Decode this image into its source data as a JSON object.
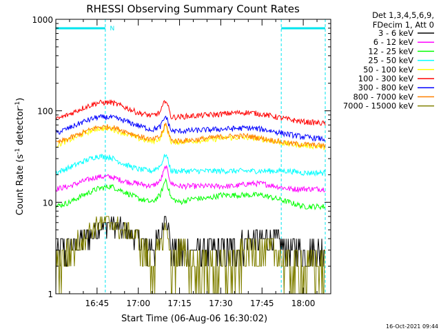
{
  "chart_data": {
    "type": "line",
    "title": "RHESSI Observing Summary Count Rates",
    "xlabel": "Start Time (06-Aug-06 16:30:02)",
    "ylabel_main": "Count Rate (s",
    "ylabel_sup1": "-1",
    "ylabel_mid": " detector",
    "ylabel_sup2": "-1",
    "ylabel_end": ")",
    "y_scale": "log",
    "ylim": [
      1,
      1000
    ],
    "xlim": [
      "16:30",
      "18:10"
    ],
    "x_ticks": [
      "16:45",
      "17:00",
      "17:15",
      "17:30",
      "17:45",
      "18:00"
    ],
    "y_ticks": [
      "1",
      "10",
      "100",
      "1000"
    ],
    "legend_header": [
      "Det 1,3,4,5,6,9,",
      "FDecim 1, Att 0"
    ],
    "timestamp": "16-Oct-2021 09:44",
    "night_marker_label": "N",
    "night_intervals": [
      [
        "16:30",
        "16:48"
      ],
      [
        "17:52",
        "18:08"
      ]
    ],
    "x_time": [
      "16:30",
      "16:35",
      "16:40",
      "16:45",
      "16:50",
      "16:55",
      "17:00",
      "17:05",
      "17:08",
      "17:10",
      "17:12",
      "17:15",
      "17:20",
      "17:25",
      "17:30",
      "17:35",
      "17:40",
      "17:45",
      "17:50",
      "17:55",
      "18:00",
      "18:05",
      "18:10"
    ],
    "series": [
      {
        "name": "3 - 6 keV",
        "color": "#000000",
        "values": [
          3,
          3,
          4,
          5,
          6,
          5,
          4,
          3,
          4,
          8,
          3,
          3,
          3,
          3,
          3,
          3,
          4,
          4,
          4,
          3,
          3,
          3,
          3
        ]
      },
      {
        "name": "6 - 12 keV",
        "color": "#ff00ff",
        "values": [
          14,
          15,
          17,
          19,
          19,
          17,
          16,
          15,
          17,
          25,
          16,
          15,
          15,
          15,
          15,
          15,
          16,
          16,
          15,
          14,
          14,
          14,
          14
        ]
      },
      {
        "name": "12 - 25 keV",
        "color": "#00ff00",
        "values": [
          9,
          10,
          12,
          14,
          15,
          13,
          11,
          10,
          12,
          18,
          11,
          10,
          11,
          11,
          12,
          12,
          12,
          12,
          11,
          10,
          9,
          9,
          9
        ]
      },
      {
        "name": "25 - 50 keV",
        "color": "#00ffff",
        "values": [
          21,
          24,
          28,
          32,
          31,
          26,
          23,
          22,
          25,
          34,
          22,
          22,
          22,
          22,
          22,
          22,
          22,
          22,
          22,
          22,
          21,
          21,
          21
        ]
      },
      {
        "name": "50 - 100 keV",
        "color": "#ffff00",
        "values": [
          42,
          48,
          56,
          64,
          64,
          57,
          50,
          46,
          50,
          70,
          45,
          46,
          47,
          48,
          50,
          51,
          51,
          49,
          46,
          43,
          42,
          41,
          40
        ]
      },
      {
        "name": "100 - 300 keV",
        "color": "#ff0000",
        "values": [
          80,
          92,
          108,
          122,
          124,
          110,
          95,
          88,
          96,
          135,
          85,
          86,
          88,
          90,
          92,
          95,
          96,
          92,
          86,
          80,
          76,
          74,
          72
        ]
      },
      {
        "name": "300 - 800 keV",
        "color": "#0000ff",
        "values": [
          57,
          65,
          76,
          85,
          85,
          78,
          69,
          62,
          67,
          88,
          60,
          60,
          61,
          62,
          63,
          64,
          65,
          63,
          59,
          55,
          52,
          50,
          48
        ]
      },
      {
        "name": "800 - 7000 keV",
        "color": "#ff8000",
        "values": [
          44,
          50,
          58,
          66,
          67,
          60,
          53,
          48,
          52,
          72,
          47,
          47,
          48,
          50,
          52,
          53,
          53,
          50,
          47,
          44,
          43,
          42,
          41
        ]
      },
      {
        "name": "7000 - 15000 keV",
        "color": "#808000",
        "values": [
          2,
          3,
          4,
          6,
          6,
          5,
          4,
          2,
          3,
          6,
          2,
          3,
          2,
          2,
          2,
          2,
          3,
          3,
          3,
          2,
          2,
          2,
          2
        ]
      }
    ]
  }
}
